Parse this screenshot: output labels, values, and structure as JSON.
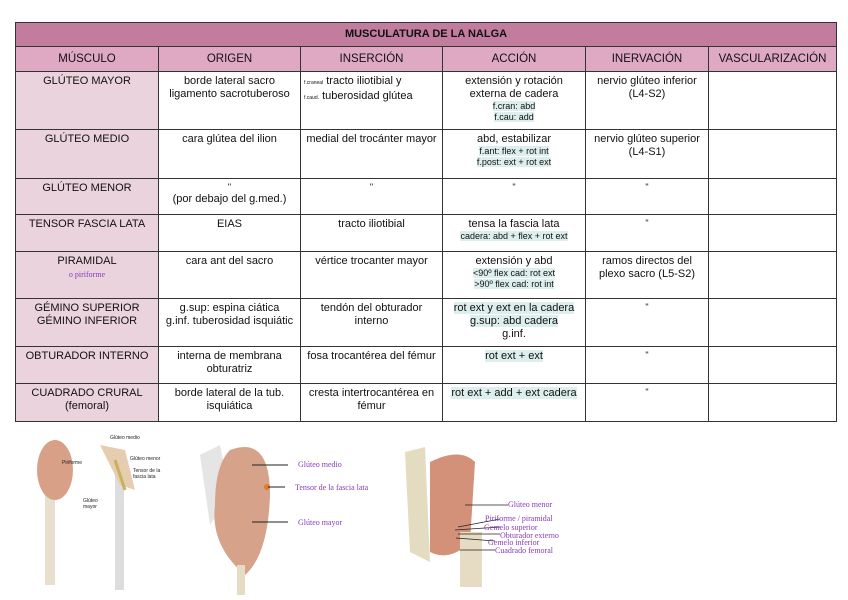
{
  "title": "MUSCULATURA DE LA NALGA",
  "headers": [
    "MÚSCULO",
    "ORIGEN",
    "INSERCIÓN",
    "ACCIÓN",
    "INERVACIÓN",
    "VASCULARIZACIÓN"
  ],
  "rows": [
    {
      "musculo": "GLÚTEO MAYOR",
      "origen": [
        "borde lateral sacro",
        "ligamento sacrotuberoso"
      ],
      "insercion_prefix": [
        "f.craneal",
        "f.caud."
      ],
      "insercion": [
        "tracto iliotibial y",
        "tuberosidad glútea"
      ],
      "accion": "extensión y rotación externa de cadera",
      "accion_sub": [
        "f.cran: abd",
        "f.cau: add"
      ],
      "inervacion": "nervio glúteo inferior (L4-S2)",
      "vasc": ""
    },
    {
      "musculo": "GLÚTEO MEDIO",
      "origen": "cara glútea del ilion",
      "insercion": "medial del trocánter mayor",
      "accion": "abd, estabilizar",
      "accion_sub": [
        "f.ant: flex + rot int",
        "f.post: ext + rot ext"
      ],
      "inervacion": "nervio glúteo superior (L4-S1)",
      "vasc": ""
    },
    {
      "musculo": "GLÚTEO MENOR",
      "origen": [
        "\"",
        "(por debajo del g.med.)"
      ],
      "insercion": "\"",
      "accion": "\"",
      "inervacion": "\"",
      "vasc": ""
    },
    {
      "musculo": "TENSOR FASCIA LATA",
      "origen": "EIAS",
      "insercion": "tracto iliotibial",
      "accion": "tensa la fascia lata",
      "accion_sub": [
        "cadera: abd + flex + rot ext"
      ],
      "inervacion": "\"",
      "vasc": ""
    },
    {
      "musculo": "PIRAMIDAL",
      "musculo_sub": "o piriforme",
      "origen": "cara ant del sacro",
      "insercion": "vértice trocanter mayor",
      "accion": "extensión y abd",
      "accion_sub": [
        "<90º flex cad: rot ext",
        ">90º flex cad: rot int"
      ],
      "inervacion": "ramos directos del plexo sacro (L5-S2)",
      "vasc": ""
    },
    {
      "musculo": [
        "GÉMINO SUPERIOR",
        "GÉMINO INFERIOR"
      ],
      "origen": [
        "g.sup: espina ciática",
        "g.inf. tuberosidad isquiátic"
      ],
      "insercion": "tendón del obturador interno",
      "accion": [
        "rot ext y ext en la cadera",
        "g.sup: abd cadera",
        "g.inf."
      ],
      "inervacion": "\"",
      "vasc": ""
    },
    {
      "musculo": "OBTURADOR INTERNO",
      "origen": "interna de membrana obturatriz",
      "insercion": "fosa trocantérea del fémur",
      "accion": "rot ext + ext",
      "inervacion": "\"",
      "vasc": ""
    },
    {
      "musculo": [
        "CUADRADO CRURAL",
        "(femoral)"
      ],
      "origen": "borde lateral de la tub. isquiática",
      "insercion": "cresta intertrocantérea en fémur",
      "accion": "rot ext + add + ext cadera",
      "inervacion": "\"",
      "vasc": ""
    }
  ],
  "figures": {
    "fig1": [
      "Glúteo medio",
      "Piriforme",
      "Glúteo menor",
      "Tensor de la fascia lata",
      "Glúteo mayor"
    ],
    "fig2": [
      "Glúteo medio",
      "Tensor de la fascia lata",
      "Glúteo mayor"
    ],
    "fig3": [
      "Glúteo menor",
      "Piriforme / piramidal",
      "Gemelo superior",
      "Obturador externo",
      "Gemelo inferior",
      "Cuadrado femoral"
    ]
  },
  "colors": {
    "title_bg": "#c27c9e",
    "header_bg": "#dfa9c3",
    "muscle_col_bg": "#ebd3de",
    "highlight": "#dcefed",
    "label": "#8a3bb8"
  }
}
